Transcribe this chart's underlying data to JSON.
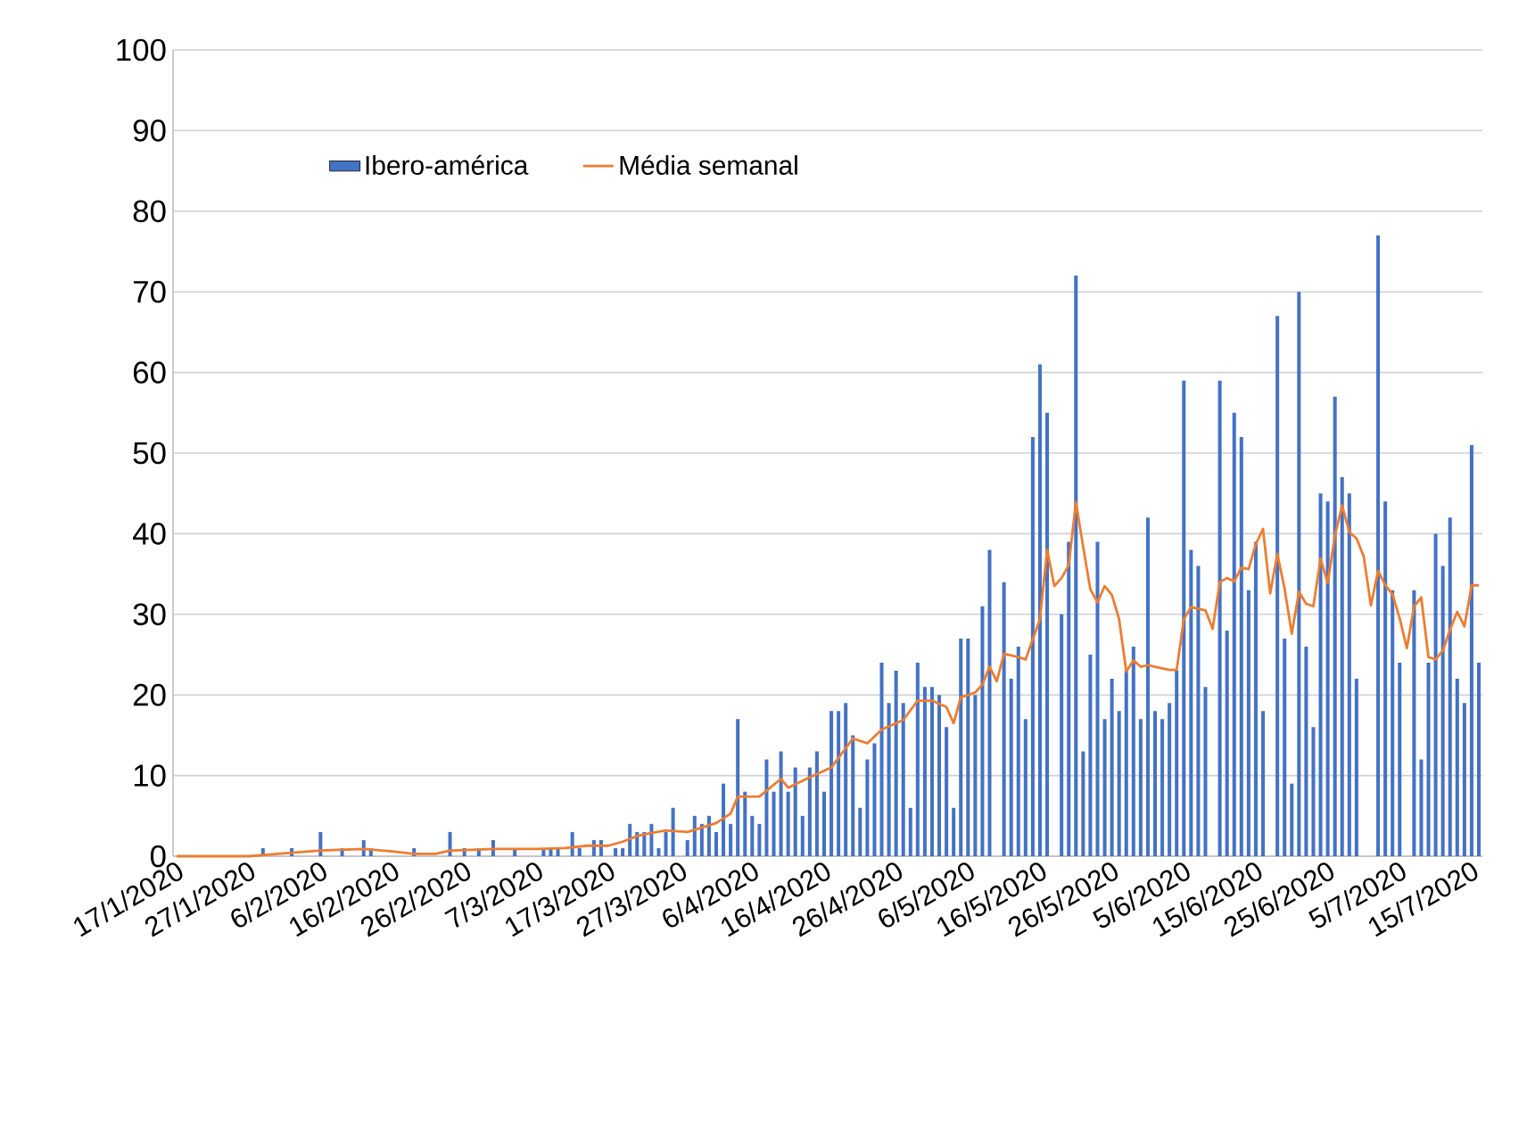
{
  "chart_data": {
    "type": "bar",
    "xlim": [
      "2020-01-16T12:00",
      "2020-07-16T12:00"
    ],
    "ylim": [
      0,
      100
    ],
    "yticks": [
      0,
      10,
      20,
      30,
      40,
      50,
      60,
      70,
      80,
      90,
      100
    ],
    "xticks": [
      {
        "value": "2020-01-17",
        "label": "17/1/2020"
      },
      {
        "value": "2020-01-27",
        "label": "27/1/2020"
      },
      {
        "value": "2020-02-06",
        "label": "6/2/2020"
      },
      {
        "value": "2020-02-16",
        "label": "16/2/2020"
      },
      {
        "value": "2020-02-26",
        "label": "26/2/2020"
      },
      {
        "value": "2020-03-07",
        "label": "7/3/2020"
      },
      {
        "value": "2020-03-17",
        "label": "17/3/2020"
      },
      {
        "value": "2020-03-27",
        "label": "27/3/2020"
      },
      {
        "value": "2020-04-06",
        "label": "6/4/2020"
      },
      {
        "value": "2020-04-16",
        "label": "16/4/2020"
      },
      {
        "value": "2020-04-26",
        "label": "26/4/2020"
      },
      {
        "value": "2020-05-06",
        "label": "6/5/2020"
      },
      {
        "value": "2020-05-16",
        "label": "16/5/2020"
      },
      {
        "value": "2020-05-26",
        "label": "26/5/2020"
      },
      {
        "value": "2020-06-05",
        "label": "5/6/2020"
      },
      {
        "value": "2020-06-15",
        "label": "15/6/2020"
      },
      {
        "value": "2020-06-25",
        "label": "25/6/2020"
      },
      {
        "value": "2020-07-05",
        "label": "5/7/2020"
      },
      {
        "value": "2020-07-15",
        "label": "15/7/2020"
      }
    ],
    "grid": "y",
    "legend": "top left",
    "x": [
      "2020-01-17",
      "2020-01-18",
      "2020-01-19",
      "2020-01-20",
      "2020-01-21",
      "2020-01-22",
      "2020-01-23",
      "2020-01-24",
      "2020-01-25",
      "2020-01-26",
      "2020-01-27",
      "2020-01-28",
      "2020-01-29",
      "2020-01-30",
      "2020-01-31",
      "2020-02-01",
      "2020-02-02",
      "2020-02-03",
      "2020-02-04",
      "2020-02-05",
      "2020-02-06",
      "2020-02-07",
      "2020-02-08",
      "2020-02-09",
      "2020-02-10",
      "2020-02-11",
      "2020-02-12",
      "2020-02-13",
      "2020-02-14",
      "2020-02-15",
      "2020-02-16",
      "2020-02-17",
      "2020-02-18",
      "2020-02-19",
      "2020-02-20",
      "2020-02-21",
      "2020-02-22",
      "2020-02-23",
      "2020-02-24",
      "2020-02-25",
      "2020-02-26",
      "2020-02-27",
      "2020-02-28",
      "2020-02-29",
      "2020-03-01",
      "2020-03-02",
      "2020-03-03",
      "2020-03-04",
      "2020-03-05",
      "2020-03-06",
      "2020-03-07",
      "2020-03-08",
      "2020-03-09",
      "2020-03-10",
      "2020-03-11",
      "2020-03-12",
      "2020-03-13",
      "2020-03-14",
      "2020-03-15",
      "2020-03-16",
      "2020-03-17",
      "2020-03-18",
      "2020-03-19",
      "2020-03-20",
      "2020-03-21",
      "2020-03-22",
      "2020-03-23",
      "2020-03-24",
      "2020-03-25",
      "2020-03-26",
      "2020-03-27",
      "2020-03-28",
      "2020-03-29",
      "2020-03-30",
      "2020-03-31",
      "2020-04-01",
      "2020-04-02",
      "2020-04-03",
      "2020-04-04",
      "2020-04-05",
      "2020-04-06",
      "2020-04-07",
      "2020-04-08",
      "2020-04-09",
      "2020-04-10",
      "2020-04-11",
      "2020-04-12",
      "2020-04-13",
      "2020-04-14",
      "2020-04-15",
      "2020-04-16",
      "2020-04-17",
      "2020-04-18",
      "2020-04-19",
      "2020-04-20",
      "2020-04-21",
      "2020-04-22",
      "2020-04-23",
      "2020-04-24",
      "2020-04-25",
      "2020-04-26",
      "2020-04-27",
      "2020-04-28",
      "2020-04-29",
      "2020-04-30",
      "2020-05-01",
      "2020-05-02",
      "2020-05-03",
      "2020-05-04",
      "2020-05-05",
      "2020-05-06",
      "2020-05-07",
      "2020-05-08",
      "2020-05-09",
      "2020-05-10",
      "2020-05-11",
      "2020-05-12",
      "2020-05-13",
      "2020-05-14",
      "2020-05-15",
      "2020-05-16",
      "2020-05-17",
      "2020-05-18",
      "2020-05-19",
      "2020-05-20",
      "2020-05-21",
      "2020-05-22",
      "2020-05-23",
      "2020-05-24",
      "2020-05-25",
      "2020-05-26",
      "2020-05-27",
      "2020-05-28",
      "2020-05-29",
      "2020-05-30",
      "2020-05-31",
      "2020-06-01",
      "2020-06-02",
      "2020-06-03",
      "2020-06-04",
      "2020-06-05",
      "2020-06-06",
      "2020-06-07",
      "2020-06-08",
      "2020-06-09",
      "2020-06-10",
      "2020-06-11",
      "2020-06-12",
      "2020-06-13",
      "2020-06-14",
      "2020-06-15",
      "2020-06-16",
      "2020-06-17",
      "2020-06-18",
      "2020-06-19",
      "2020-06-20",
      "2020-06-21",
      "2020-06-22",
      "2020-06-23",
      "2020-06-24",
      "2020-06-25",
      "2020-06-26",
      "2020-06-27",
      "2020-06-28",
      "2020-06-29",
      "2020-06-30",
      "2020-07-01",
      "2020-07-02",
      "2020-07-03",
      "2020-07-04",
      "2020-07-05",
      "2020-07-06",
      "2020-07-07",
      "2020-07-08",
      "2020-07-09",
      "2020-07-10",
      "2020-07-11",
      "2020-07-12",
      "2020-07-13",
      "2020-07-14",
      "2020-07-15",
      "2020-07-16"
    ],
    "series": [
      {
        "name": "Ibero-américa",
        "color": "#4472c4",
        "values": [
          0,
          0,
          0,
          0,
          0,
          0,
          0,
          0,
          0,
          0,
          0,
          0,
          1,
          0,
          0,
          0,
          1,
          0,
          0,
          0,
          3,
          0,
          0,
          1,
          0,
          0,
          2,
          1,
          0,
          0,
          0,
          0,
          0,
          1,
          0,
          0,
          0,
          0,
          3,
          0,
          1,
          0,
          1,
          0,
          2,
          0,
          0,
          1,
          0,
          0,
          0,
          1,
          1,
          1,
          0,
          3,
          1,
          0,
          2,
          2,
          0,
          1,
          1,
          4,
          3,
          3,
          4,
          1,
          3,
          6,
          0,
          2,
          5,
          4,
          5,
          3,
          9,
          4,
          17,
          8,
          5,
          4,
          12,
          8,
          13,
          8,
          11,
          5,
          11,
          13,
          8,
          18,
          18,
          19,
          15,
          6,
          12,
          14,
          24,
          19,
          23,
          19,
          6,
          24,
          21,
          21,
          20,
          16,
          6,
          27,
          27,
          20,
          31,
          38,
          0,
          34,
          22,
          26,
          17,
          52,
          61,
          55,
          0,
          30,
          39,
          72,
          13,
          25,
          39,
          17,
          22,
          18,
          23,
          26,
          17,
          42,
          18,
          17,
          19,
          23,
          59,
          38,
          36,
          21,
          0,
          59,
          28,
          55,
          52,
          33,
          39,
          18,
          0,
          67,
          27,
          9,
          70,
          26,
          16,
          45,
          44,
          57,
          47,
          45,
          22,
          0,
          0,
          77,
          44,
          33,
          24,
          0,
          33,
          12,
          24,
          40,
          36,
          42,
          22,
          19,
          51,
          24
        ]
      },
      {
        "name": "Média semanal",
        "type": "line",
        "color": "#ed7d31",
        "line_style": "solid",
        "x": [
          "2020-01-17",
          "2020-01-27",
          "2020-01-31",
          "2020-02-06",
          "2020-02-12",
          "2020-02-16",
          "2020-02-19",
          "2020-02-22",
          "2020-02-24",
          "2020-03-01",
          "2020-03-07",
          "2020-03-11",
          "2020-03-14",
          "2020-03-17",
          "2020-03-19",
          "2020-03-21",
          "2020-03-23",
          "2020-03-25",
          "2020-03-28",
          "2020-04-01",
          "2020-04-03",
          "2020-04-04",
          "2020-04-07",
          "2020-04-10",
          "2020-04-11",
          "2020-04-14",
          "2020-04-17",
          "2020-04-20",
          "2020-04-22",
          "2020-04-24",
          "2020-04-27",
          "2020-04-29",
          "2020-05-01",
          "2020-05-03",
          "2020-05-04",
          "2020-05-05",
          "2020-05-07",
          "2020-05-08",
          "2020-05-09",
          "2020-05-10",
          "2020-05-11",
          "2020-05-13",
          "2020-05-14",
          "2020-05-16",
          "2020-05-17",
          "2020-05-18",
          "2020-05-19",
          "2020-05-20",
          "2020-05-21",
          "2020-05-22",
          "2020-05-23",
          "2020-05-24",
          "2020-05-25",
          "2020-05-26",
          "2020-05-27",
          "2020-05-28",
          "2020-05-29",
          "2020-05-30",
          "2020-05-31",
          "2020-06-01",
          "2020-06-03",
          "2020-06-04",
          "2020-06-05",
          "2020-06-06",
          "2020-06-08",
          "2020-06-09",
          "2020-06-10",
          "2020-06-11",
          "2020-06-12",
          "2020-06-13",
          "2020-06-14",
          "2020-06-15",
          "2020-06-16",
          "2020-06-17",
          "2020-06-18",
          "2020-06-19",
          "2020-06-20",
          "2020-06-21",
          "2020-06-22",
          "2020-06-23",
          "2020-06-24",
          "2020-06-25",
          "2020-06-26",
          "2020-06-27",
          "2020-06-28",
          "2020-06-29",
          "2020-06-30",
          "2020-07-01",
          "2020-07-02",
          "2020-07-03",
          "2020-07-04",
          "2020-07-05",
          "2020-07-06",
          "2020-07-07",
          "2020-07-08",
          "2020-07-09",
          "2020-07-10",
          "2020-07-11",
          "2020-07-12",
          "2020-07-13",
          "2020-07-14",
          "2020-07-15",
          "2020-07-16"
        ],
        "values": [
          0,
          0,
          0.3,
          0.7,
          0.9,
          0.6,
          0.3,
          0.3,
          0.7,
          0.9,
          0.9,
          1.0,
          1.3,
          1.3,
          1.8,
          2.5,
          2.9,
          3.2,
          3.0,
          4.1,
          5.3,
          7.4,
          7.4,
          9.6,
          8.5,
          9.8,
          11.0,
          14.6,
          14.0,
          15.7,
          16.9,
          19.3,
          19.3,
          18.5,
          16.5,
          19.7,
          20.3,
          21.3,
          23.5,
          21.7,
          25.1,
          24.7,
          24.4,
          29.4,
          38.0,
          33.5,
          34.5,
          36.1,
          43.9,
          38.4,
          33.1,
          31.5,
          33.5,
          32.4,
          29.4,
          22.9,
          24.3,
          23.5,
          23.7,
          23.5,
          23.1,
          23.1,
          29.4,
          30.9,
          30.5,
          28.2,
          34.0,
          34.5,
          34.1,
          35.8,
          35.6,
          38.7,
          40.6,
          32.6,
          37.5,
          33.2,
          27.6,
          32.8,
          31.3,
          31.0,
          36.9,
          33.9,
          39.8,
          43.5,
          40.2,
          39.4,
          37.2,
          31.1,
          35.4,
          33.6,
          32.5,
          29.5,
          25.8,
          31.0,
          32.1,
          24.7,
          24.4,
          25.5,
          28.1,
          30.3,
          28.5,
          33.6,
          33.6
        ]
      }
    ]
  }
}
